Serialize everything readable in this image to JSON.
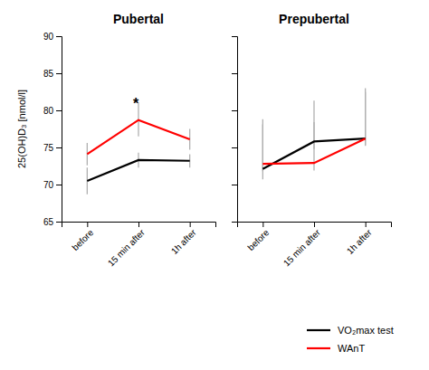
{
  "chart_data": [
    {
      "type": "line",
      "title": "Pubertal",
      "y_label": "25(OH)D₃ [nmol/l]",
      "categories": [
        "before",
        "15 min after",
        "1h after"
      ],
      "series": [
        {
          "name": "VO₂max test",
          "color": "#000000",
          "values": [
            70.5,
            73.3,
            73.2
          ],
          "errors_low": [
            1.8,
            1.0,
            0.9
          ],
          "errors_high": [
            1.8,
            1.0,
            0.9
          ]
        },
        {
          "name": "WAnT",
          "color": "#ff0000",
          "values": [
            74.1,
            78.7,
            76.1
          ],
          "errors_low": [
            1.5,
            2.2,
            1.4
          ],
          "errors_high": [
            1.5,
            2.4,
            1.4
          ]
        }
      ],
      "ylim": [
        65,
        90
      ],
      "yticks": [
        65,
        70,
        75,
        80,
        85,
        90
      ],
      "annotations": [
        {
          "text": "*",
          "x": 0.95,
          "y": 80.2
        }
      ],
      "legend": "lower right"
    },
    {
      "type": "line",
      "title": "Prepubertal",
      "categories": [
        "before",
        "15 min after",
        "1h after"
      ],
      "series": [
        {
          "color": "#000000",
          "values": [
            72.1,
            75.8,
            76.2
          ],
          "errors_low": [
            1.4,
            1.0,
            0.9
          ],
          "errors_high": [
            6.0,
            5.5,
            6.3
          ]
        },
        {
          "color": "#ff0000",
          "values": [
            72.8,
            72.9,
            76.2
          ],
          "errors_low": [
            1.0,
            1.0,
            1.0
          ],
          "errors_high": [
            6.0,
            5.5,
            6.8
          ]
        }
      ],
      "ylim": [
        65,
        90
      ],
      "yticks": [
        65,
        70,
        75,
        80,
        85,
        90
      ],
      "tick_labels": "x"
    }
  ]
}
